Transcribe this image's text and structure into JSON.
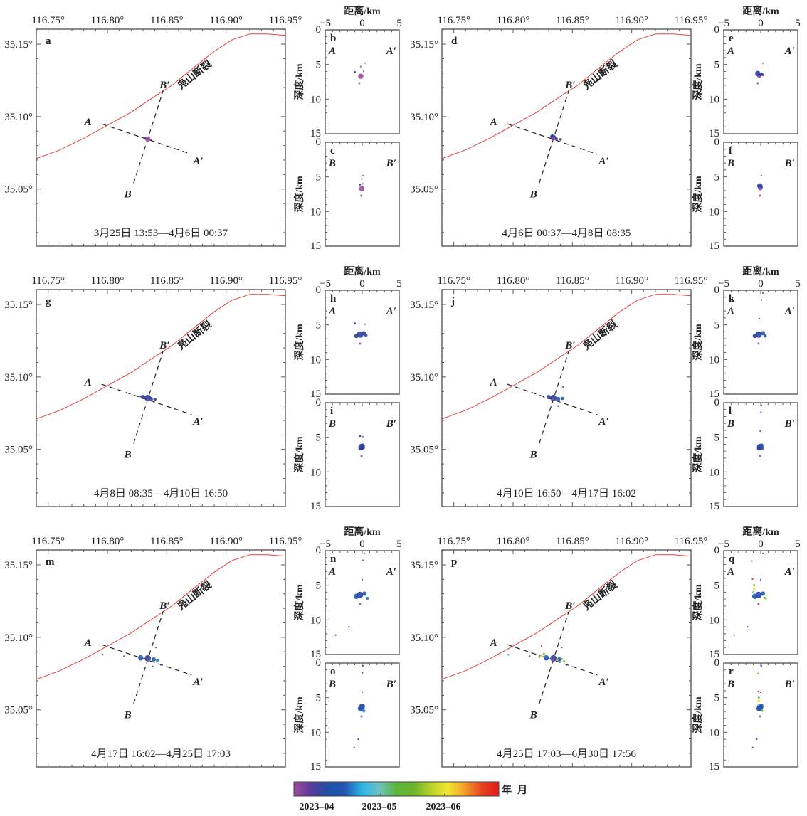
{
  "chart_data": {
    "type": "scatter",
    "description_units": "map view (longitude/latitude) plus two depth cross-sections per time window; events colored by origin time",
    "map_axes": {
      "xlim": [
        116.74,
        116.95
      ],
      "ylim": [
        35.0106,
        35.1603
      ],
      "x_ticks": [
        116.75,
        116.8,
        116.85,
        116.9,
        116.95
      ],
      "x_tick_labels": [
        "116.75°",
        "116.80°",
        "116.85°",
        "116.90°",
        "116.95°"
      ],
      "y_ticks": [
        35.05,
        35.1,
        35.15
      ],
      "y_tick_labels": [
        "35.05°",
        "35.10°",
        "35.15°"
      ]
    },
    "section_axes": {
      "xlabel": "距离/km",
      "ylabel": "深度/km",
      "xlim": [
        -5,
        5
      ],
      "ylim": [
        15,
        0
      ],
      "x_ticks": [
        -5,
        0,
        5
      ],
      "x_tick_labels": [
        "−5",
        "0",
        "5"
      ],
      "y_ticks": [
        0,
        5,
        10,
        15
      ],
      "y_tick_labels": [
        "0",
        "5",
        "10",
        "15"
      ]
    },
    "fault": {
      "name": "凫山断裂",
      "color": "#e8413a",
      "trace": [
        [
          116.74,
          35.071
        ],
        [
          116.76,
          35.077
        ],
        [
          116.78,
          35.085
        ],
        [
          116.8,
          35.094
        ],
        [
          116.82,
          35.103
        ],
        [
          116.84,
          35.114
        ],
        [
          116.855,
          35.122
        ],
        [
          116.87,
          35.132
        ],
        [
          116.89,
          35.145
        ],
        [
          116.905,
          35.153
        ],
        [
          116.92,
          35.157
        ],
        [
          116.935,
          35.157
        ],
        [
          116.95,
          35.156
        ]
      ]
    },
    "profiles": {
      "AA": {
        "start_label": "A",
        "end_label": "A′",
        "start": [
          116.795,
          35.095
        ],
        "end": [
          116.871,
          35.074
        ]
      },
      "BB": {
        "start_label": "B",
        "end_label": "B′",
        "start": [
          116.822,
          35.054
        ],
        "end": [
          116.847,
          35.118
        ]
      }
    },
    "colorbar": {
      "label": "年−月",
      "ticks": [
        "2023-04",
        "2023-05",
        "2023-06"
      ],
      "colors": [
        "#a24aa0",
        "#5a3b9a",
        "#1f4fa6",
        "#2257b0",
        "#2bb5e8",
        "#6fc2c0",
        "#5db53a",
        "#6ab52a",
        "#b8d02a",
        "#f0e830",
        "#f2a02a",
        "#e8421f",
        "#e01b1b"
      ]
    },
    "panels": [
      {
        "map_letter": "a",
        "aa_letter": "b",
        "bb_letter": "c",
        "period": "3月25日 13:53—4月6日 00:37",
        "events": [
          {
            "lon": 116.834,
            "lat": 35.0845,
            "dist": -0.2,
            "depth": 6.7,
            "size": 5,
            "color": "#a24aa0"
          },
          {
            "lon": 116.832,
            "lat": 35.085,
            "dist": -1.0,
            "depth": 6.1,
            "size": 2,
            "color": "#3a3aa0"
          },
          {
            "lon": 116.836,
            "lat": 35.0842,
            "dist": 0.4,
            "depth": 4.8,
            "size": 1.5,
            "color": "#a24aa0"
          },
          {
            "lon": 116.835,
            "lat": 35.0848,
            "dist": -0.2,
            "depth": 5.3,
            "size": 1.5,
            "color": "#a24aa0"
          },
          {
            "lon": 116.833,
            "lat": 35.0846,
            "dist": -0.4,
            "depth": 7.7,
            "size": 2,
            "color": "#a24aa0"
          },
          {
            "lon": 116.837,
            "lat": 35.0843,
            "dist": 0.2,
            "depth": 6.0,
            "size": 1.5,
            "color": "#5a3b9a"
          }
        ]
      },
      {
        "map_letter": "d",
        "aa_letter": "e",
        "bb_letter": "f",
        "period": "4月6日 00:37—4月8日 08:35",
        "events": [
          {
            "lon": 116.834,
            "lat": 35.0855,
            "dist": -0.4,
            "depth": 6.3,
            "size": 5,
            "color": "#2a3f9f"
          },
          {
            "lon": 116.833,
            "lat": 35.0862,
            "dist": -0.2,
            "depth": 6.6,
            "size": 4,
            "color": "#2a3f9f"
          },
          {
            "lon": 116.8365,
            "lat": 35.0845,
            "dist": 0.1,
            "depth": 6.4,
            "size": 3,
            "color": "#2a3f9f"
          },
          {
            "lon": 116.84,
            "lat": 35.0842,
            "dist": 0.3,
            "depth": 6.5,
            "size": 2.5,
            "color": "#2a3f9f"
          },
          {
            "lon": 116.834,
            "lat": 35.0845,
            "dist": -0.2,
            "depth": 6.7,
            "size": 3,
            "color": "#a24aa0"
          },
          {
            "lon": 116.836,
            "lat": 35.0842,
            "dist": 0.3,
            "depth": 4.8,
            "size": 1.5,
            "color": "#a24aa0"
          },
          {
            "lon": 116.833,
            "lat": 35.0846,
            "dist": -0.4,
            "depth": 7.7,
            "size": 2,
            "color": "#a24aa0"
          }
        ]
      },
      {
        "map_letter": "g",
        "aa_letter": "h",
        "bb_letter": "i",
        "period": "4月8日 08:35—4月10日 16:50",
        "events": [
          {
            "lon": 116.834,
            "lat": 35.0855,
            "dist": -0.3,
            "depth": 6.4,
            "size": 6,
            "color": "#2a3f9f"
          },
          {
            "lon": 116.83,
            "lat": 35.0862,
            "dist": -0.8,
            "depth": 6.6,
            "size": 4,
            "color": "#2a3f9f"
          },
          {
            "lon": 116.8365,
            "lat": 35.0848,
            "dist": 0.2,
            "depth": 6.2,
            "size": 4,
            "color": "#2a3f9f"
          },
          {
            "lon": 116.84,
            "lat": 35.0845,
            "dist": 0.5,
            "depth": 6.5,
            "size": 3,
            "color": "#2a3f9f"
          },
          {
            "lon": 116.828,
            "lat": 35.0866,
            "dist": -1.0,
            "depth": 4.8,
            "size": 2,
            "color": "#2a3f9f"
          },
          {
            "lon": 116.834,
            "lat": 35.0845,
            "dist": -0.3,
            "depth": 7.7,
            "size": 2,
            "color": "#a24aa0"
          },
          {
            "lon": 116.836,
            "lat": 35.0842,
            "dist": 0.4,
            "depth": 4.9,
            "size": 1.5,
            "color": "#a24aa0"
          }
        ]
      },
      {
        "map_letter": "j",
        "aa_letter": "k",
        "bb_letter": "l",
        "period": "4月10日 16:50—4月17日 16:02",
        "events": [
          {
            "lon": 116.834,
            "lat": 35.0855,
            "dist": -0.3,
            "depth": 6.4,
            "size": 6,
            "color": "#2a3f9f"
          },
          {
            "lon": 116.83,
            "lat": 35.0862,
            "dist": -0.8,
            "depth": 6.6,
            "size": 4,
            "color": "#2a3f9f"
          },
          {
            "lon": 116.838,
            "lat": 35.0848,
            "dist": 0.3,
            "depth": 6.2,
            "size": 4,
            "color": "#2457b0"
          },
          {
            "lon": 116.8415,
            "lat": 35.0852,
            "dist": 0.6,
            "depth": 6.6,
            "size": 3,
            "color": "#2457b0"
          },
          {
            "lon": 116.842,
            "lat": 35.093,
            "dist": 0.3,
            "depth": 0.4,
            "size": 1.5,
            "color": "#2457b0"
          },
          {
            "lon": 116.838,
            "lat": 35.08,
            "dist": 0.1,
            "depth": 1.4,
            "size": 1.5,
            "color": "#2457b0"
          },
          {
            "lon": 116.826,
            "lat": 35.086,
            "dist": -0.2,
            "depth": 4.1,
            "size": 1.5,
            "color": "#2457b0"
          },
          {
            "lon": 116.834,
            "lat": 35.0845,
            "dist": -0.3,
            "depth": 7.7,
            "size": 2,
            "color": "#a24aa0"
          }
        ]
      },
      {
        "map_letter": "m",
        "aa_letter": "n",
        "bb_letter": "o",
        "period": "4月17日 16:02—4月25日 17:03",
        "events": [
          {
            "lon": 116.834,
            "lat": 35.0855,
            "dist": -0.3,
            "depth": 6.4,
            "size": 6,
            "color": "#2a3f9f"
          },
          {
            "lon": 116.828,
            "lat": 35.0858,
            "dist": -0.8,
            "depth": 6.6,
            "size": 5,
            "color": "#2457b0"
          },
          {
            "lon": 116.839,
            "lat": 35.0848,
            "dist": 0.3,
            "depth": 6.2,
            "size": 4,
            "color": "#2457b0"
          },
          {
            "lon": 116.842,
            "lat": 35.0842,
            "dist": 0.7,
            "depth": 6.9,
            "size": 3,
            "color": "#2b7fc8"
          },
          {
            "lon": 116.796,
            "lat": 35.088,
            "dist": -3.6,
            "depth": 12.2,
            "size": 1.5,
            "color": "#2457b0"
          },
          {
            "lon": 116.814,
            "lat": 35.087,
            "dist": -1.8,
            "depth": 11.0,
            "size": 1.5,
            "color": "#2457b0"
          },
          {
            "lon": 116.841,
            "lat": 35.093,
            "dist": 0.3,
            "depth": 0.4,
            "size": 1.5,
            "color": "#2457b0"
          },
          {
            "lon": 116.838,
            "lat": 35.08,
            "dist": 0.1,
            "depth": 1.4,
            "size": 1.5,
            "color": "#2457b0"
          },
          {
            "lon": 116.845,
            "lat": 35.081,
            "dist": 0.0,
            "depth": 4.2,
            "size": 1.5,
            "color": "#2457b0"
          },
          {
            "lon": 116.834,
            "lat": 35.0845,
            "dist": -0.3,
            "depth": 7.7,
            "size": 2,
            "color": "#a24aa0"
          }
        ]
      },
      {
        "map_letter": "p",
        "aa_letter": "q",
        "bb_letter": "r",
        "period": "4月25日 17:03—6月30日 17:56",
        "events": [
          {
            "lon": 116.834,
            "lat": 35.0855,
            "dist": -0.3,
            "depth": 6.4,
            "size": 6,
            "color": "#2a3f9f"
          },
          {
            "lon": 116.828,
            "lat": 35.0858,
            "dist": -0.8,
            "depth": 6.6,
            "size": 5,
            "color": "#2457b0"
          },
          {
            "lon": 116.839,
            "lat": 35.0848,
            "dist": 0.3,
            "depth": 6.2,
            "size": 4,
            "color": "#2457b0"
          },
          {
            "lon": 116.824,
            "lat": 35.087,
            "dist": -0.9,
            "depth": 5.5,
            "size": 2.5,
            "color": "#f0e830"
          },
          {
            "lon": 116.826,
            "lat": 35.0885,
            "dist": -0.9,
            "depth": 5.0,
            "size": 2,
            "color": "#5db53a"
          },
          {
            "lon": 116.822,
            "lat": 35.0865,
            "dist": -1.0,
            "depth": 6.0,
            "size": 2,
            "color": "#6fc2c0"
          },
          {
            "lon": 116.841,
            "lat": 35.0852,
            "dist": 0.5,
            "depth": 6.8,
            "size": 2,
            "color": "#5db53a"
          },
          {
            "lon": 116.843,
            "lat": 35.0835,
            "dist": 0.7,
            "depth": 6.9,
            "size": 2,
            "color": "#6ab52a"
          },
          {
            "lon": 116.824,
            "lat": 35.094,
            "dist": -1.1,
            "depth": 4.1,
            "size": 1.5,
            "color": "#e01b1b"
          },
          {
            "lon": 116.838,
            "lat": 35.0845,
            "dist": -1.2,
            "depth": 1.5,
            "size": 1.5,
            "color": "#6ab52a"
          },
          {
            "lon": 116.796,
            "lat": 35.088,
            "dist": -3.6,
            "depth": 12.2,
            "size": 1.5,
            "color": "#2457b0"
          },
          {
            "lon": 116.814,
            "lat": 35.087,
            "dist": -1.8,
            "depth": 11.0,
            "size": 1.5,
            "color": "#2457b0"
          },
          {
            "lon": 116.841,
            "lat": 35.093,
            "dist": 0.3,
            "depth": 0.4,
            "size": 1.5,
            "color": "#2457b0"
          },
          {
            "lon": 116.845,
            "lat": 35.081,
            "dist": 0.0,
            "depth": 4.2,
            "size": 1.5,
            "color": "#2457b0"
          },
          {
            "lon": 116.834,
            "lat": 35.0845,
            "dist": -0.3,
            "depth": 7.7,
            "size": 2,
            "color": "#a24aa0"
          }
        ]
      }
    ]
  }
}
